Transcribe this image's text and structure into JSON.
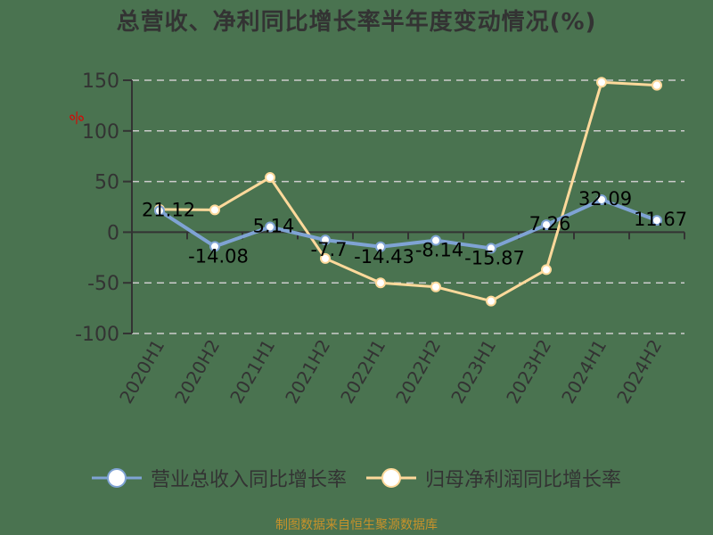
{
  "title": "总营收、净利同比增长率半年度变动情况(%)",
  "y_unit": "%",
  "legend": [
    {
      "label": "营业总收入同比增长率",
      "color": "#7fa3d4"
    },
    {
      "label": "归母净利润同比增长率",
      "color": "#fed99b"
    }
  ],
  "source": "制图数据来自恒生聚源数据库",
  "chart_data": {
    "type": "line",
    "title": "总营收、净利同比增长率半年度变动情况(%)",
    "xlabel": "",
    "ylabel": "%",
    "ylim": [
      -100,
      150
    ],
    "yticks": [
      150,
      100,
      50,
      0,
      -50,
      -100
    ],
    "grid": true,
    "legend_position": "bottom",
    "categories": [
      "2020H1",
      "2020H2",
      "2021H1",
      "2021H2",
      "2022H1",
      "2022H2",
      "2023H1",
      "2023H2",
      "2024H1",
      "2024H2"
    ],
    "series": [
      {
        "name": "营业总收入同比增长率",
        "color": "#7fa3d4",
        "values": [
          21.12,
          -14.08,
          5.14,
          -7.7,
          -14.43,
          -8.14,
          -15.87,
          7.26,
          32.09,
          11.67
        ],
        "data_labels": [
          "21.12",
          "-14.08",
          "5.14",
          "-7.7",
          "-14.43",
          "-8.14",
          "-15.87",
          "7.26",
          "32.09",
          "11.67"
        ]
      },
      {
        "name": "归母净利润同比增长率",
        "color": "#fed99b",
        "values": [
          22.5,
          22,
          54,
          -26,
          -50,
          -54,
          -68,
          -37,
          148,
          145
        ]
      }
    ]
  }
}
